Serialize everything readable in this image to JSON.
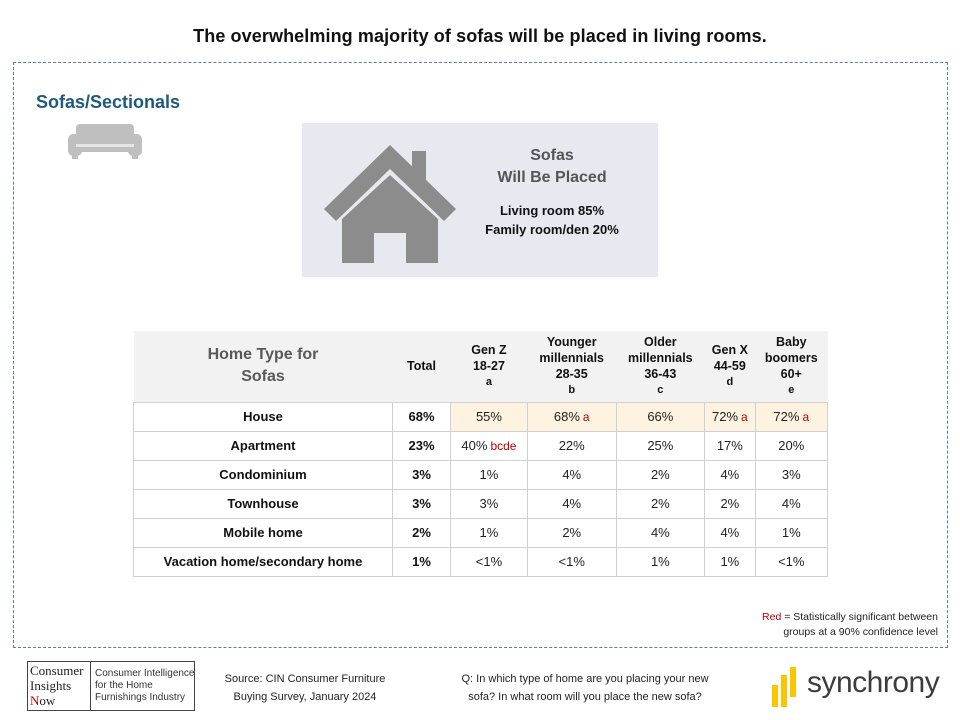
{
  "slide_title": "The overwhelming majority of sofas will be placed in living rooms.",
  "section_title": "Sofas/Sectionals",
  "icons": {
    "sofa": "sofa-icon",
    "house": "house-icon",
    "synchrony_mark": "synchrony-mark-icon"
  },
  "placed_box": {
    "title_line1": "Sofas",
    "title_line2": "Will Be Placed",
    "line1": "Living room 85%",
    "line2": "Family room/den 20%"
  },
  "chart_data": {
    "type": "table",
    "title": "Home Type for Sofas",
    "header": {
      "home_type_line1": "Home Type for",
      "home_type_line2": "Sofas",
      "total": "Total"
    },
    "columns": [
      {
        "lines": [
          "Gen Z",
          "18-27"
        ],
        "code": "a"
      },
      {
        "lines": [
          "Younger",
          "millennials",
          "28-35"
        ],
        "code": "b"
      },
      {
        "lines": [
          "Older",
          "millennials",
          "36-43"
        ],
        "code": "c"
      },
      {
        "lines": [
          "Gen X",
          "44-59"
        ],
        "code": "d"
      },
      {
        "lines": [
          "Baby",
          "boomers",
          "60+"
        ],
        "code": "e"
      }
    ],
    "rows": [
      {
        "label": "House",
        "total": "68%",
        "highlight": true,
        "cells": [
          {
            "v": "55%",
            "sig": ""
          },
          {
            "v": "68%",
            "sig": "a"
          },
          {
            "v": "66%",
            "sig": ""
          },
          {
            "v": "72%",
            "sig": "a"
          },
          {
            "v": "72%",
            "sig": "a"
          }
        ]
      },
      {
        "label": "Apartment",
        "total": "23%",
        "highlight": false,
        "cells": [
          {
            "v": "40%",
            "sig": "bcde"
          },
          {
            "v": "22%",
            "sig": ""
          },
          {
            "v": "25%",
            "sig": ""
          },
          {
            "v": "17%",
            "sig": ""
          },
          {
            "v": "20%",
            "sig": ""
          }
        ]
      },
      {
        "label": "Condominium",
        "total": "3%",
        "highlight": false,
        "cells": [
          {
            "v": "1%",
            "sig": ""
          },
          {
            "v": "4%",
            "sig": ""
          },
          {
            "v": "2%",
            "sig": ""
          },
          {
            "v": "4%",
            "sig": ""
          },
          {
            "v": "3%",
            "sig": ""
          }
        ]
      },
      {
        "label": "Townhouse",
        "total": "3%",
        "highlight": false,
        "cells": [
          {
            "v": "3%",
            "sig": ""
          },
          {
            "v": "4%",
            "sig": ""
          },
          {
            "v": "2%",
            "sig": ""
          },
          {
            "v": "2%",
            "sig": ""
          },
          {
            "v": "4%",
            "sig": ""
          }
        ]
      },
      {
        "label": "Mobile home",
        "total": "2%",
        "highlight": false,
        "cells": [
          {
            "v": "1%",
            "sig": ""
          },
          {
            "v": "2%",
            "sig": ""
          },
          {
            "v": "4%",
            "sig": ""
          },
          {
            "v": "4%",
            "sig": ""
          },
          {
            "v": "1%",
            "sig": ""
          }
        ]
      },
      {
        "label": "Vacation home/secondary home",
        "total": "1%",
        "highlight": false,
        "cells": [
          {
            "v": "<1%",
            "sig": ""
          },
          {
            "v": "<1%",
            "sig": ""
          },
          {
            "v": "1%",
            "sig": ""
          },
          {
            "v": "1%",
            "sig": ""
          },
          {
            "v": "<1%",
            "sig": ""
          }
        ]
      }
    ],
    "colors": {
      "significance": "#c00000",
      "highlight_row": "#fdf3e0",
      "header_bg": "#f2f2f2"
    }
  },
  "legend": {
    "red_word": "Red",
    "text1": " = Statistically significant between",
    "text2": "groups at a 90% confidence level"
  },
  "footer": {
    "cin_logo": {
      "line1": "Consumer",
      "line2": "Insights",
      "line3_n": "N",
      "line3_rest": "ow",
      "right_line1": "Consumer Intelligence",
      "right_line2": "for the Home",
      "right_line3": "Furnishings Industry"
    },
    "source_line1": "Source: CIN Consumer Furniture",
    "source_line2": "Buying Survey, January 2024",
    "question_line1": "Q: In which type of home are you placing your new",
    "question_line2": "sofa? In what room will you place the new sofa?",
    "brand": "synchrony",
    "brand_color": "#fbc600"
  }
}
